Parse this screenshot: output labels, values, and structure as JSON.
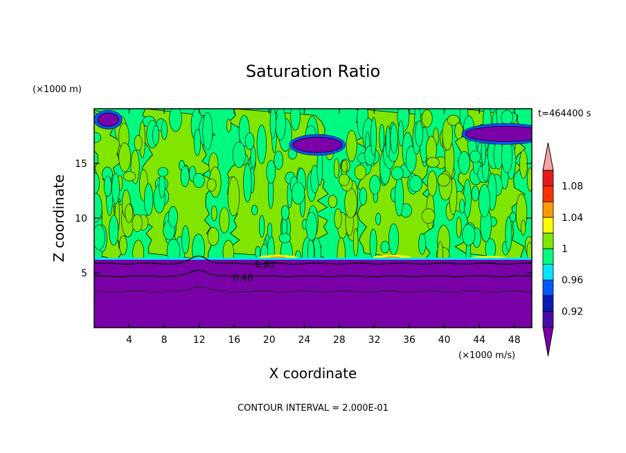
{
  "chart_data": {
    "type": "heatmap",
    "title": "Saturation Ratio",
    "xlabel": "X coordinate",
    "ylabel": "Z coordinate",
    "x_unit": "(×1000 m/s)",
    "y_unit": "(×1000 m)",
    "time_label": "t=464400 s",
    "footer": "CONTOUR INTERVAL = 2.000E-01",
    "xlim": [
      0,
      50
    ],
    "ylim": [
      0,
      20
    ],
    "x_ticks": [
      4,
      8,
      12,
      16,
      20,
      24,
      28,
      32,
      36,
      40,
      44,
      48
    ],
    "y_ticks": [
      5,
      10,
      15
    ],
    "contour_labels": [
      {
        "value": "0.80",
        "x": 19.5,
        "z": 5.8
      },
      {
        "value": "0.40",
        "x": 17.0,
        "z": 4.6
      }
    ],
    "colorbar": {
      "bins": [
        {
          "upper": 0.9,
          "color": "#7a00a8"
        },
        {
          "upper": 0.92,
          "color": "#4a0aa8"
        },
        {
          "upper": 0.94,
          "color": "#0b1bb0"
        },
        {
          "upper": 0.96,
          "color": "#0058ff"
        },
        {
          "upper": 0.98,
          "color": "#00e5ff"
        },
        {
          "upper": 1.0,
          "color": "#00fa80"
        },
        {
          "upper": 1.02,
          "color": "#80e600"
        },
        {
          "upper": 1.04,
          "color": "#ffff00"
        },
        {
          "upper": 1.06,
          "color": "#ff9900"
        },
        {
          "upper": 1.08,
          "color": "#ff3300"
        },
        {
          "upper": 1.1,
          "color": "#e61a1a"
        },
        {
          "upper": 1.12,
          "color": "#f5a3a3"
        }
      ],
      "labels": [
        "0.92",
        "0.96",
        "1",
        "1.04",
        "1.08"
      ]
    },
    "regions": {
      "moist_layer_top_z": 6.2,
      "saturated_columns_x": [
        [
          0,
          2.5
        ],
        [
          6,
          13
        ],
        [
          16,
          26
        ],
        [
          30.5,
          38
        ],
        [
          42,
          48.5
        ]
      ],
      "dry_patches": [
        {
          "x": 1.6,
          "z": 19.0
        },
        {
          "x": 25.5,
          "z": 16.7
        },
        {
          "x": 47.0,
          "z": 17.7
        }
      ],
      "supersaturated_patches": [
        {
          "x": 21,
          "z": 6.4
        },
        {
          "x": 34,
          "z": 6.4
        },
        {
          "x": 45,
          "z": 6.3
        }
      ],
      "bottom_contours_z": [
        5.85,
        4.7,
        3.3
      ]
    }
  }
}
